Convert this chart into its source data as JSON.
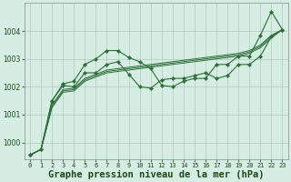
{
  "background_color": "#d5ede3",
  "grid_color": "#b0ccbb",
  "line_color": "#2d6e3a",
  "xlabel": "Graphe pression niveau de la mer (hPa)",
  "xlabel_fontsize": 7.5,
  "ylim": [
    999.4,
    1005.0
  ],
  "xlim": [
    -0.5,
    23.5
  ],
  "yticks": [
    1000,
    1001,
    1002,
    1003,
    1004
  ],
  "xticks": [
    0,
    1,
    2,
    3,
    4,
    5,
    6,
    7,
    8,
    9,
    10,
    11,
    12,
    13,
    14,
    15,
    16,
    17,
    18,
    19,
    20,
    21,
    22,
    23
  ],
  "series": {
    "wiggly_top": [
      999.55,
      999.75,
      1001.5,
      1002.1,
      1002.2,
      1002.8,
      1003.0,
      1003.3,
      1003.3,
      1003.05,
      1002.9,
      1002.65,
      1002.05,
      1002.0,
      1002.2,
      1002.3,
      1002.3,
      1002.8,
      1002.8,
      1003.1,
      1003.1,
      1003.85,
      1004.7,
      1004.05
    ],
    "wiggly_low": [
      999.55,
      999.75,
      1001.5,
      1002.05,
      1002.0,
      1002.5,
      1002.5,
      1002.8,
      1002.9,
      1002.45,
      1002.0,
      1001.95,
      1002.25,
      1002.3,
      1002.3,
      1002.4,
      1002.5,
      1002.3,
      1002.4,
      1002.8,
      1002.8,
      1003.1,
      1003.8,
      1004.05
    ],
    "trend1": [
      999.55,
      999.75,
      1001.35,
      1001.9,
      1001.95,
      1002.3,
      1002.45,
      1002.6,
      1002.65,
      1002.7,
      1002.75,
      1002.8,
      1002.85,
      1002.9,
      1002.95,
      1003.0,
      1003.05,
      1003.1,
      1003.15,
      1003.2,
      1003.3,
      1003.5,
      1003.85,
      1004.05
    ],
    "trend2": [
      999.55,
      999.75,
      1001.3,
      1001.85,
      1001.9,
      1002.25,
      1002.4,
      1002.55,
      1002.6,
      1002.65,
      1002.7,
      1002.75,
      1002.8,
      1002.85,
      1002.9,
      1002.95,
      1003.0,
      1003.05,
      1003.1,
      1003.15,
      1003.25,
      1003.45,
      1003.8,
      1004.05
    ],
    "trend3": [
      999.55,
      999.75,
      1001.25,
      1001.8,
      1001.85,
      1002.2,
      1002.35,
      1002.5,
      1002.55,
      1002.6,
      1002.65,
      1002.7,
      1002.75,
      1002.8,
      1002.85,
      1002.9,
      1002.95,
      1003.0,
      1003.05,
      1003.1,
      1003.2,
      1003.4,
      1003.75,
      1004.05
    ]
  }
}
